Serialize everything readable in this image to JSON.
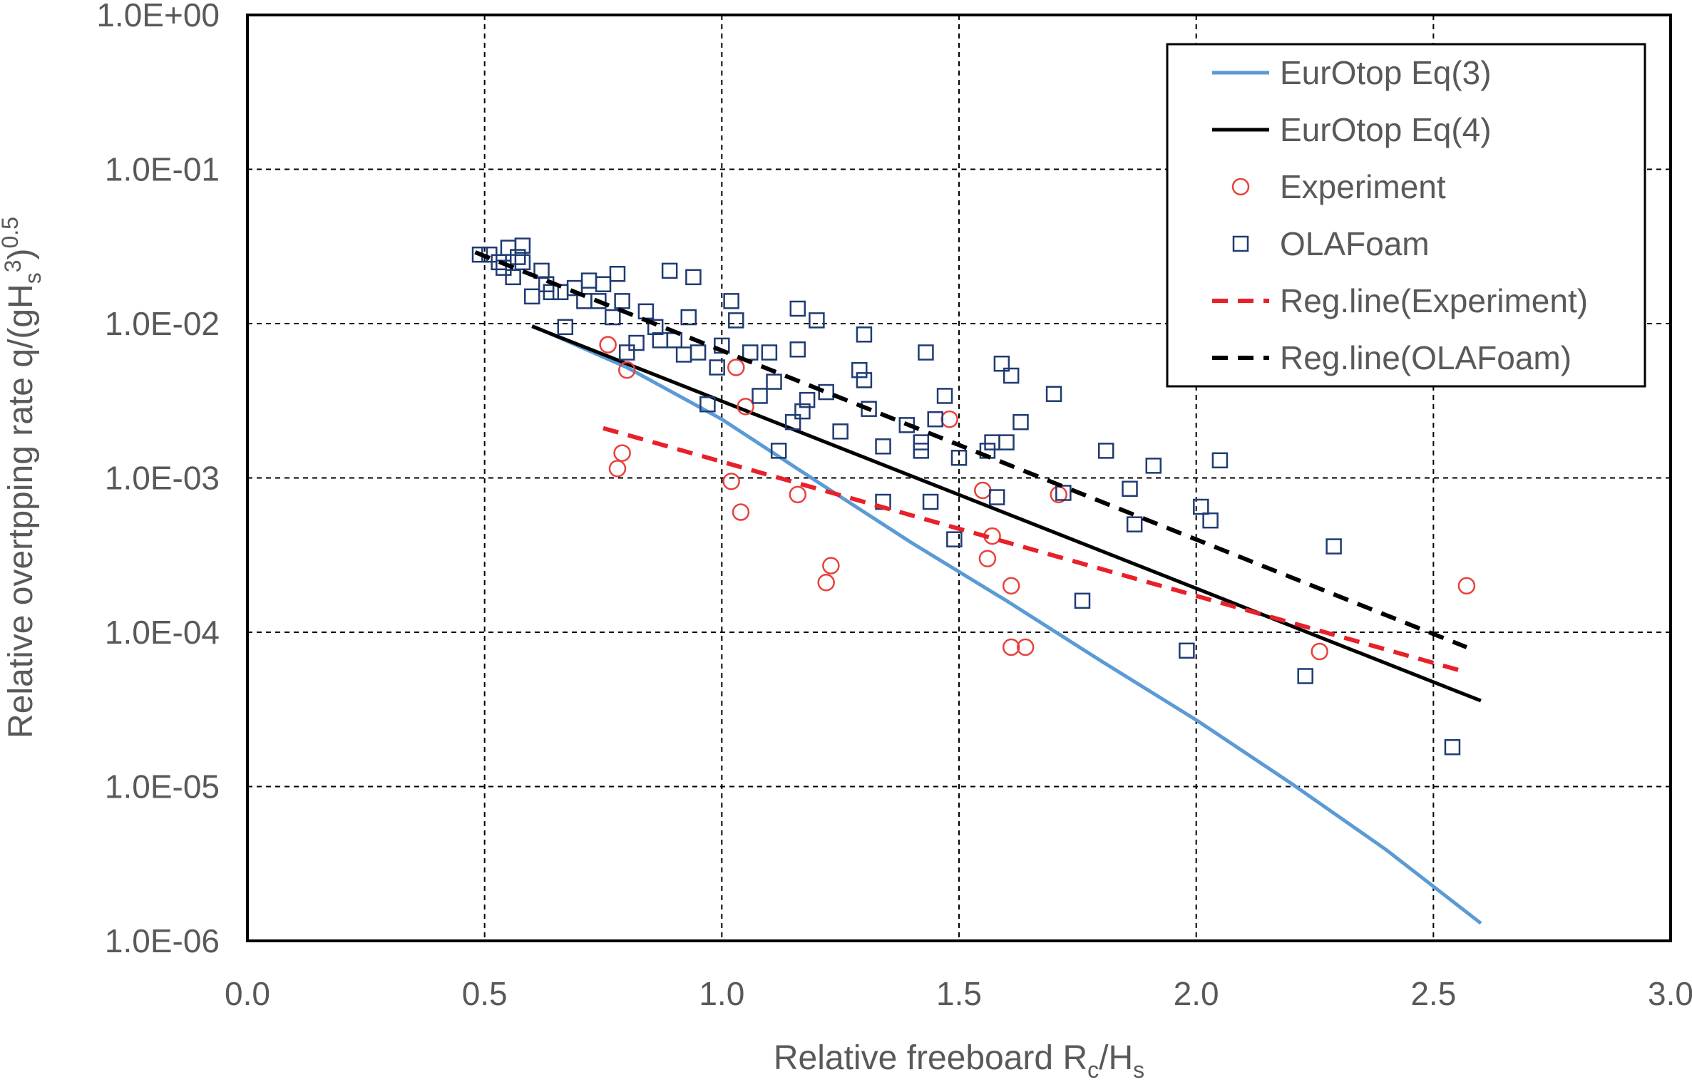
{
  "chart_data": {
    "type": "scatter",
    "title": "",
    "xlabel": {
      "main": "Relative freeboard R",
      "sub1": "c",
      "mid": "/H",
      "sub2": "s"
    },
    "ylabel": {
      "main": "Relative overtpping rate q/(gH",
      "sub": "s",
      "sup1": "3",
      "close": ")",
      "sup2": "0.5"
    },
    "xlim": [
      0.0,
      3.0
    ],
    "ylim": [
      1e-06,
      1.0
    ],
    "yscale": "log",
    "grid": true,
    "legend_position": "top-right",
    "x_ticks": [
      "0.0",
      "0.5",
      "1.0",
      "1.5",
      "2.0",
      "2.5",
      "3.0"
    ],
    "x_tick_values": [
      0.0,
      0.5,
      1.0,
      1.5,
      2.0,
      2.5,
      3.0
    ],
    "y_ticks": [
      "1.0E+00",
      "1.0E-01",
      "1.0E-02",
      "1.0E-03",
      "1.0E-04",
      "1.0E-05",
      "1.0E-06"
    ],
    "y_tick_values": [
      1.0,
      0.1,
      0.01,
      0.001,
      0.0001,
      1e-05,
      1e-06
    ],
    "series": [
      {
        "name": "EurOtop Eq(3)",
        "kind": "line",
        "color": "#5b9bd5",
        "dash": "solid",
        "points": [
          [
            0.6,
            0.0097
          ],
          [
            0.8,
            0.0052
          ],
          [
            1.0,
            0.0024
          ],
          [
            1.2,
            0.00095
          ],
          [
            1.4,
            0.00038
          ],
          [
            1.6,
            0.00016
          ],
          [
            1.8,
            6.5e-05
          ],
          [
            2.0,
            2.7e-05
          ],
          [
            2.2,
            1.05e-05
          ],
          [
            2.4,
            3.9e-06
          ],
          [
            2.6,
            1.3e-06
          ]
        ]
      },
      {
        "name": "EurOtop Eq(4)",
        "kind": "line",
        "color": "#000000",
        "dash": "solid",
        "points": [
          [
            0.6,
            0.0096
          ],
          [
            2.6,
            3.6e-05
          ]
        ]
      },
      {
        "name": "Experiment",
        "kind": "scatter",
        "marker": "circle",
        "color": "#e8413c",
        "points": [
          [
            0.76,
            0.0073
          ],
          [
            0.78,
            0.00115
          ],
          [
            0.79,
            0.00145
          ],
          [
            0.8,
            0.005
          ],
          [
            1.02,
            0.00095
          ],
          [
            1.03,
            0.0052
          ],
          [
            1.04,
            0.0006
          ],
          [
            1.05,
            0.0029
          ],
          [
            1.16,
            0.00078
          ],
          [
            1.22,
            0.00021
          ],
          [
            1.23,
            0.00027
          ],
          [
            1.48,
            0.0024
          ],
          [
            1.55,
            0.00083
          ],
          [
            1.56,
            0.0003
          ],
          [
            1.57,
            0.00042
          ],
          [
            1.61,
            0.0002
          ],
          [
            1.61,
            8e-05
          ],
          [
            1.64,
            8e-05
          ],
          [
            1.71,
            0.00078
          ],
          [
            2.26,
            7.5e-05
          ],
          [
            2.57,
            0.0002
          ]
        ]
      },
      {
        "name": "OLAFoam",
        "kind": "scatter",
        "marker": "square",
        "color": "#1f3b73",
        "points": [
          [
            0.49,
            0.028
          ],
          [
            0.51,
            0.028
          ],
          [
            0.53,
            0.025
          ],
          [
            0.54,
            0.023
          ],
          [
            0.55,
            0.031
          ],
          [
            0.56,
            0.02
          ],
          [
            0.57,
            0.027
          ],
          [
            0.58,
            0.032
          ],
          [
            0.58,
            0.025
          ],
          [
            0.6,
            0.015
          ],
          [
            0.62,
            0.022
          ],
          [
            0.63,
            0.018
          ],
          [
            0.64,
            0.016
          ],
          [
            0.66,
            0.016
          ],
          [
            0.67,
            0.0095
          ],
          [
            0.69,
            0.017
          ],
          [
            0.71,
            0.014
          ],
          [
            0.72,
            0.019
          ],
          [
            0.74,
            0.014
          ],
          [
            0.75,
            0.018
          ],
          [
            0.77,
            0.011
          ],
          [
            0.78,
            0.021
          ],
          [
            0.79,
            0.014
          ],
          [
            0.8,
            0.0065
          ],
          [
            0.82,
            0.0075
          ],
          [
            0.84,
            0.012
          ],
          [
            0.86,
            0.0095
          ],
          [
            0.87,
            0.0078
          ],
          [
            0.89,
            0.022
          ],
          [
            0.9,
            0.0078
          ],
          [
            0.92,
            0.0063
          ],
          [
            0.93,
            0.011
          ],
          [
            0.94,
            0.02
          ],
          [
            0.95,
            0.0065
          ],
          [
            0.97,
            0.003
          ],
          [
            0.99,
            0.0052
          ],
          [
            1.0,
            0.0072
          ],
          [
            1.02,
            0.014
          ],
          [
            1.03,
            0.0105
          ],
          [
            1.06,
            0.0065
          ],
          [
            1.08,
            0.0034
          ],
          [
            1.1,
            0.0065
          ],
          [
            1.11,
            0.0042
          ],
          [
            1.12,
            0.0015
          ],
          [
            1.15,
            0.0023
          ],
          [
            1.16,
            0.0068
          ],
          [
            1.16,
            0.0125
          ],
          [
            1.17,
            0.0027
          ],
          [
            1.18,
            0.0032
          ],
          [
            1.2,
            0.0105
          ],
          [
            1.22,
            0.0036
          ],
          [
            1.25,
            0.002
          ],
          [
            1.29,
            0.005
          ],
          [
            1.3,
            0.0043
          ],
          [
            1.31,
            0.0028
          ],
          [
            1.3,
            0.0085
          ],
          [
            1.34,
            0.0016
          ],
          [
            1.34,
            0.0007
          ],
          [
            1.39,
            0.0022
          ],
          [
            1.42,
            0.0015
          ],
          [
            1.42,
            0.0017
          ],
          [
            1.43,
            0.0065
          ],
          [
            1.44,
            0.0007
          ],
          [
            1.45,
            0.0024
          ],
          [
            1.47,
            0.0034
          ],
          [
            1.49,
            0.0004
          ],
          [
            1.5,
            0.00135
          ],
          [
            1.56,
            0.0015
          ],
          [
            1.57,
            0.0017
          ],
          [
            1.58,
            0.00075
          ],
          [
            1.59,
            0.0055
          ],
          [
            1.61,
            0.0046
          ],
          [
            1.6,
            0.0017
          ],
          [
            1.63,
            0.0023
          ],
          [
            1.7,
            0.0035
          ],
          [
            1.72,
            0.0008
          ],
          [
            1.76,
            0.00016
          ],
          [
            1.81,
            0.0015
          ],
          [
            1.86,
            0.00085
          ],
          [
            1.87,
            0.0005
          ],
          [
            1.91,
            0.0012
          ],
          [
            1.98,
            7.6e-05
          ],
          [
            2.01,
            0.00065
          ],
          [
            2.03,
            0.00053
          ],
          [
            2.05,
            0.0013
          ],
          [
            2.23,
            5.2e-05
          ],
          [
            2.29,
            0.00036
          ],
          [
            2.54,
            1.8e-05
          ]
        ]
      },
      {
        "name": "Reg.line(Experiment)",
        "kind": "line",
        "color": "#e8202a",
        "dash": "dashed",
        "points": [
          [
            0.75,
            0.0021
          ],
          [
            2.57,
            5.5e-05
          ]
        ]
      },
      {
        "name": "Reg.line(OLAFoam)",
        "kind": "line",
        "color": "#000000",
        "dash": "dashed",
        "points": [
          [
            0.48,
            0.029
          ],
          [
            2.57,
            8e-05
          ]
        ]
      }
    ]
  }
}
